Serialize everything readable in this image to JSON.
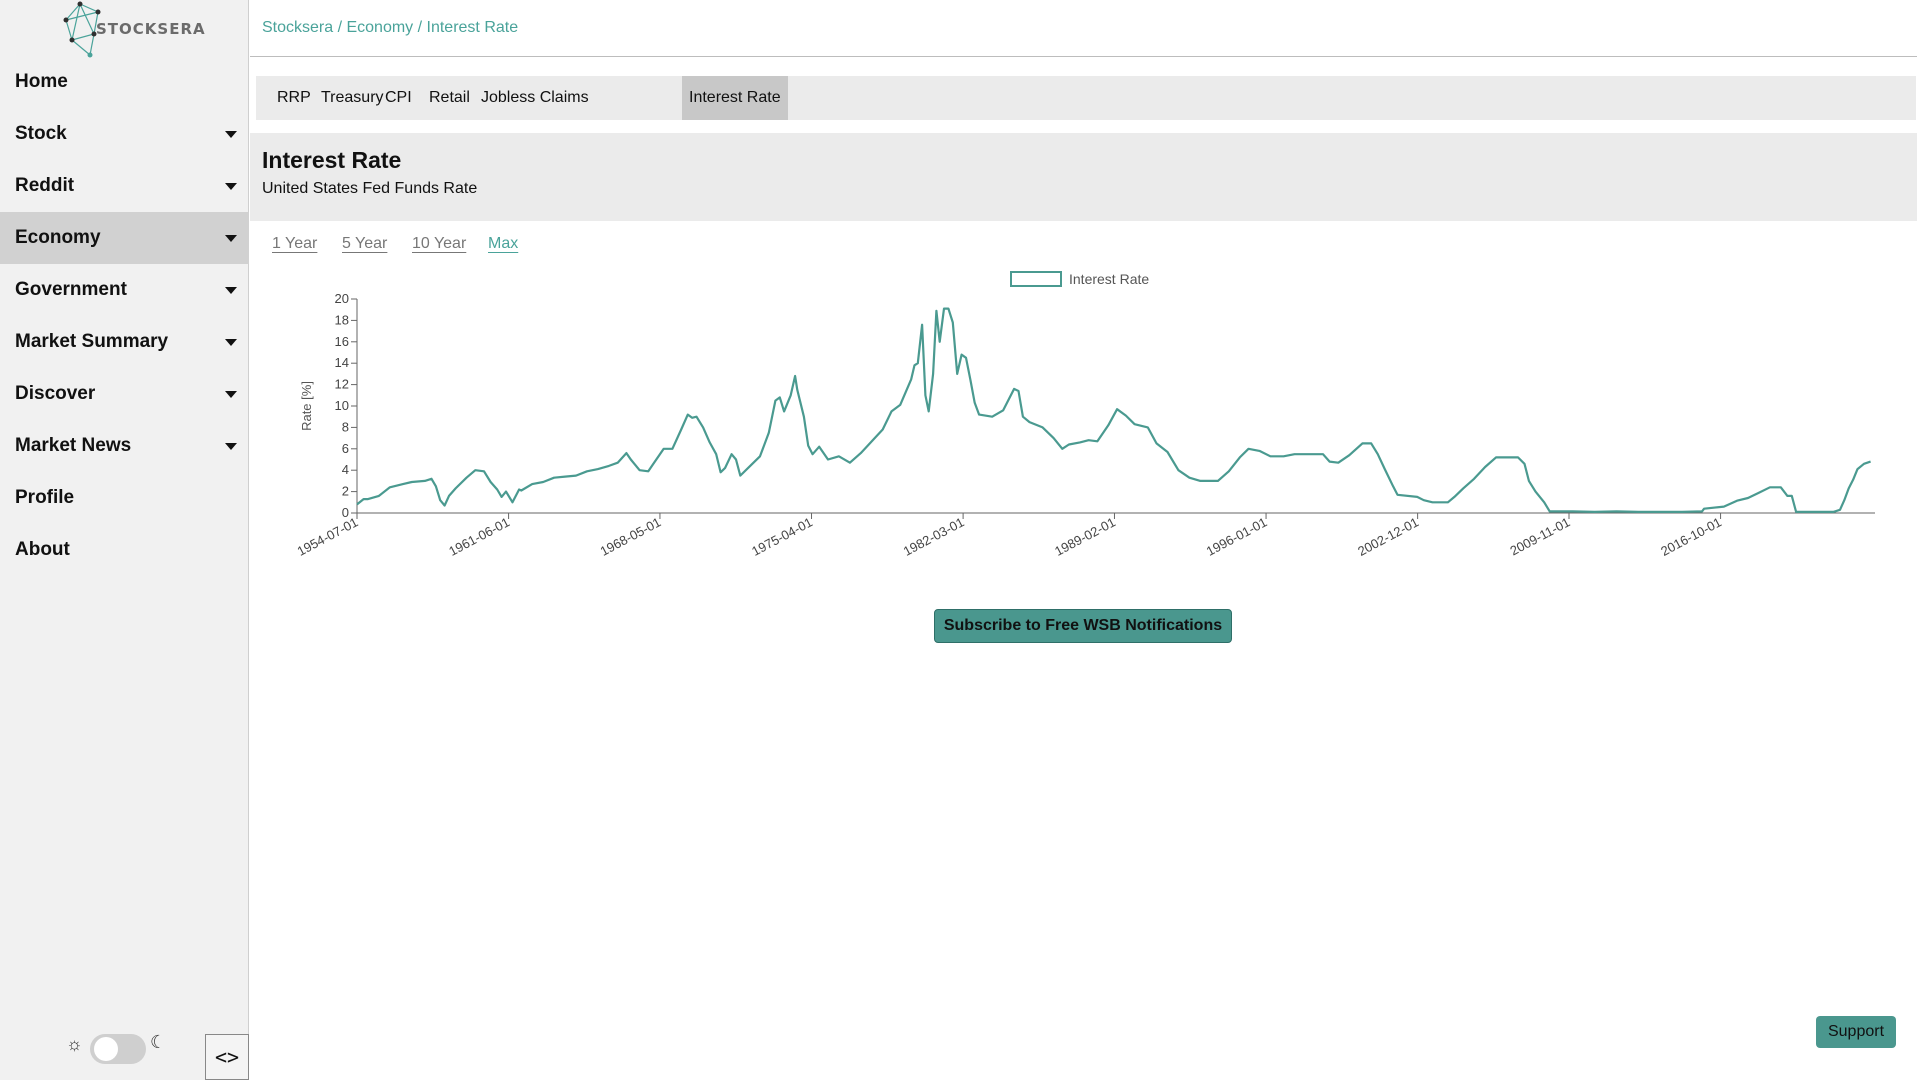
{
  "app": {
    "logo_text": "STOCKSERA"
  },
  "breadcrumb": "Stocksera / Economy / Interest Rate",
  "sidebar": {
    "items": [
      {
        "label": "Home",
        "has_caret": false
      },
      {
        "label": "Stock",
        "has_caret": true
      },
      {
        "label": "Reddit",
        "has_caret": true
      },
      {
        "label": "Economy",
        "has_caret": true,
        "active": true
      },
      {
        "label": "Government",
        "has_caret": true
      },
      {
        "label": "Market Summary",
        "has_caret": true
      },
      {
        "label": "Discover",
        "has_caret": true
      },
      {
        "label": "Market News",
        "has_caret": true
      },
      {
        "label": "Profile",
        "has_caret": false
      },
      {
        "label": "About",
        "has_caret": false
      }
    ],
    "theme": {
      "sun_icon": "sun-icon",
      "moon_icon": "moon-icon",
      "dark_mode": false
    },
    "collapse_icon": "code-icon"
  },
  "tabs": [
    {
      "label": "RRP"
    },
    {
      "label": "Treasury"
    },
    {
      "label": "CPI"
    },
    {
      "label": "Retail"
    },
    {
      "label": "Jobless Claims"
    },
    {
      "label": "Interest Rate",
      "active": true
    }
  ],
  "header": {
    "title": "Interest Rate",
    "subtitle": "United States Fed Funds Rate"
  },
  "ranges": [
    {
      "label": "1 Year"
    },
    {
      "label": "5 Year"
    },
    {
      "label": "10 Year"
    },
    {
      "label": "Max",
      "active": true
    }
  ],
  "colors": {
    "accent": "#4aa39a",
    "button": "#4a978e",
    "line": "#4a9a90"
  },
  "chart_data": {
    "type": "line",
    "title": "",
    "xlabel": "",
    "ylabel": "Rate [%]",
    "ylim": [
      0,
      20
    ],
    "yticks": [
      0,
      2,
      4,
      6,
      8,
      10,
      12,
      14,
      16,
      18,
      20
    ],
    "xlim": [
      1954.5,
      2023.8
    ],
    "xticks": [
      {
        "label": "1954-07-01",
        "value": 1954.5
      },
      {
        "label": "1961-06-01",
        "value": 1961.42
      },
      {
        "label": "1968-05-01",
        "value": 1968.33
      },
      {
        "label": "1975-04-01",
        "value": 1975.25
      },
      {
        "label": "1982-03-01",
        "value": 1982.17
      },
      {
        "label": "1989-02-01",
        "value": 1989.08
      },
      {
        "label": "1996-01-01",
        "value": 1996.0
      },
      {
        "label": "2002-12-01",
        "value": 2002.92
      },
      {
        "label": "2009-11-01",
        "value": 2009.83
      },
      {
        "label": "2016-10-01",
        "value": 2016.75
      }
    ],
    "legend": {
      "position": "top-center"
    },
    "series": [
      {
        "name": "Interest Rate",
        "points": [
          [
            1954.5,
            0.8
          ],
          [
            1954.8,
            1.3
          ],
          [
            1955.0,
            1.3
          ],
          [
            1955.5,
            1.6
          ],
          [
            1956.0,
            2.4
          ],
          [
            1956.6,
            2.7
          ],
          [
            1957.0,
            2.9
          ],
          [
            1957.6,
            3.0
          ],
          [
            1957.9,
            3.2
          ],
          [
            1958.1,
            2.5
          ],
          [
            1958.3,
            1.2
          ],
          [
            1958.5,
            0.7
          ],
          [
            1958.7,
            1.6
          ],
          [
            1959.0,
            2.3
          ],
          [
            1959.5,
            3.3
          ],
          [
            1959.9,
            4.0
          ],
          [
            1960.3,
            3.9
          ],
          [
            1960.6,
            2.9
          ],
          [
            1960.9,
            2.2
          ],
          [
            1961.1,
            1.5
          ],
          [
            1961.3,
            2.0
          ],
          [
            1961.6,
            1.0
          ],
          [
            1961.9,
            2.2
          ],
          [
            1962.0,
            2.1
          ],
          [
            1962.5,
            2.7
          ],
          [
            1963.0,
            2.9
          ],
          [
            1963.5,
            3.3
          ],
          [
            1964.0,
            3.4
          ],
          [
            1964.5,
            3.5
          ],
          [
            1965.0,
            3.9
          ],
          [
            1965.5,
            4.1
          ],
          [
            1966.0,
            4.4
          ],
          [
            1966.4,
            4.7
          ],
          [
            1966.8,
            5.6
          ],
          [
            1967.0,
            5.0
          ],
          [
            1967.4,
            4.0
          ],
          [
            1967.8,
            3.9
          ],
          [
            1968.0,
            4.5
          ],
          [
            1968.5,
            6.0
          ],
          [
            1968.9,
            6.0
          ],
          [
            1969.3,
            7.8
          ],
          [
            1969.6,
            9.2
          ],
          [
            1969.8,
            8.9
          ],
          [
            1970.0,
            9.0
          ],
          [
            1970.3,
            8.0
          ],
          [
            1970.6,
            6.6
          ],
          [
            1970.9,
            5.5
          ],
          [
            1971.1,
            3.8
          ],
          [
            1971.3,
            4.2
          ],
          [
            1971.6,
            5.5
          ],
          [
            1971.8,
            5.0
          ],
          [
            1972.0,
            3.5
          ],
          [
            1972.5,
            4.5
          ],
          [
            1972.9,
            5.3
          ],
          [
            1973.3,
            7.5
          ],
          [
            1973.6,
            10.5
          ],
          [
            1973.8,
            10.8
          ],
          [
            1974.0,
            9.5
          ],
          [
            1974.3,
            11.0
          ],
          [
            1974.5,
            12.8
          ],
          [
            1974.6,
            11.5
          ],
          [
            1974.9,
            9.0
          ],
          [
            1975.1,
            6.3
          ],
          [
            1975.3,
            5.5
          ],
          [
            1975.6,
            6.2
          ],
          [
            1976.0,
            5.0
          ],
          [
            1976.5,
            5.3
          ],
          [
            1977.0,
            4.7
          ],
          [
            1977.5,
            5.6
          ],
          [
            1978.0,
            6.7
          ],
          [
            1978.5,
            7.8
          ],
          [
            1978.9,
            9.5
          ],
          [
            1979.3,
            10.1
          ],
          [
            1979.8,
            12.5
          ],
          [
            1979.95,
            13.8
          ],
          [
            1980.1,
            14.0
          ],
          [
            1980.3,
            17.6
          ],
          [
            1980.45,
            11.0
          ],
          [
            1980.6,
            9.5
          ],
          [
            1980.8,
            13.0
          ],
          [
            1980.95,
            18.9
          ],
          [
            1981.1,
            16.0
          ],
          [
            1981.3,
            19.1
          ],
          [
            1981.5,
            19.1
          ],
          [
            1981.7,
            17.8
          ],
          [
            1981.9,
            13.0
          ],
          [
            1982.1,
            14.8
          ],
          [
            1982.3,
            14.5
          ],
          [
            1982.5,
            12.5
          ],
          [
            1982.7,
            10.3
          ],
          [
            1982.9,
            9.2
          ],
          [
            1983.5,
            9.0
          ],
          [
            1984.0,
            9.6
          ],
          [
            1984.5,
            11.6
          ],
          [
            1984.7,
            11.4
          ],
          [
            1984.9,
            9.0
          ],
          [
            1985.2,
            8.5
          ],
          [
            1985.8,
            8.0
          ],
          [
            1986.3,
            7.0
          ],
          [
            1986.7,
            6.0
          ],
          [
            1987.0,
            6.4
          ],
          [
            1987.5,
            6.6
          ],
          [
            1987.9,
            6.8
          ],
          [
            1988.3,
            6.7
          ],
          [
            1988.8,
            8.2
          ],
          [
            1989.2,
            9.7
          ],
          [
            1989.6,
            9.1
          ],
          [
            1990.0,
            8.3
          ],
          [
            1990.6,
            8.0
          ],
          [
            1991.0,
            6.5
          ],
          [
            1991.5,
            5.7
          ],
          [
            1992.0,
            4.0
          ],
          [
            1992.5,
            3.3
          ],
          [
            1993.0,
            3.0
          ],
          [
            1993.8,
            3.0
          ],
          [
            1994.3,
            3.9
          ],
          [
            1994.8,
            5.2
          ],
          [
            1995.2,
            6.0
          ],
          [
            1995.7,
            5.8
          ],
          [
            1996.2,
            5.3
          ],
          [
            1996.8,
            5.3
          ],
          [
            1997.3,
            5.5
          ],
          [
            1998.0,
            5.5
          ],
          [
            1998.6,
            5.5
          ],
          [
            1998.9,
            4.8
          ],
          [
            1999.3,
            4.7
          ],
          [
            1999.8,
            5.4
          ],
          [
            2000.4,
            6.5
          ],
          [
            2000.8,
            6.5
          ],
          [
            2001.1,
            5.5
          ],
          [
            2001.4,
            4.2
          ],
          [
            2001.8,
            2.5
          ],
          [
            2002.0,
            1.7
          ],
          [
            2002.9,
            1.5
          ],
          [
            2003.2,
            1.2
          ],
          [
            2003.6,
            1.0
          ],
          [
            2004.3,
            1.0
          ],
          [
            2004.6,
            1.5
          ],
          [
            2005.0,
            2.3
          ],
          [
            2005.5,
            3.2
          ],
          [
            2006.0,
            4.3
          ],
          [
            2006.5,
            5.2
          ],
          [
            2007.0,
            5.2
          ],
          [
            2007.5,
            5.2
          ],
          [
            2007.8,
            4.6
          ],
          [
            2008.0,
            3.0
          ],
          [
            2008.3,
            2.0
          ],
          [
            2008.7,
            1.0
          ],
          [
            2008.95,
            0.15
          ],
          [
            2010.0,
            0.15
          ],
          [
            2011.0,
            0.1
          ],
          [
            2012.0,
            0.15
          ],
          [
            2013.0,
            0.1
          ],
          [
            2014.0,
            0.1
          ],
          [
            2015.0,
            0.1
          ],
          [
            2015.9,
            0.15
          ],
          [
            2016.0,
            0.4
          ],
          [
            2016.9,
            0.6
          ],
          [
            2017.5,
            1.15
          ],
          [
            2018.0,
            1.4
          ],
          [
            2018.5,
            1.9
          ],
          [
            2019.0,
            2.4
          ],
          [
            2019.5,
            2.4
          ],
          [
            2019.8,
            1.6
          ],
          [
            2020.0,
            1.6
          ],
          [
            2020.2,
            0.1
          ],
          [
            2021.0,
            0.1
          ],
          [
            2021.9,
            0.1
          ],
          [
            2022.2,
            0.3
          ],
          [
            2022.4,
            1.2
          ],
          [
            2022.6,
            2.3
          ],
          [
            2022.8,
            3.1
          ],
          [
            2023.0,
            4.1
          ],
          [
            2023.3,
            4.6
          ],
          [
            2023.6,
            4.8
          ]
        ]
      }
    ]
  }
}
